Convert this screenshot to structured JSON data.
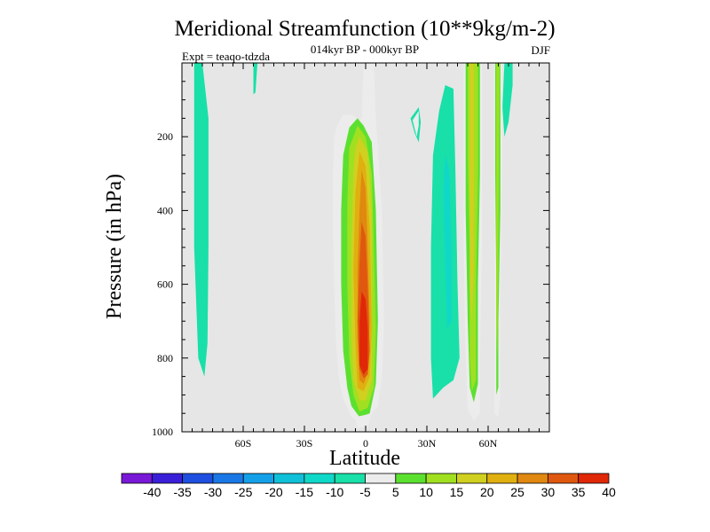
{
  "chart_data": {
    "type": "contour",
    "title": "Meridional Streamfunction (10**9kg/m-2)",
    "subtitle": "014kyr BP - 000kyr BP",
    "left_annotation": "Expt = teaqo-tdzda",
    "right_annotation": "DJF",
    "xlabel": "Latitude",
    "ylabel": "Pressure (in hPa)",
    "xlim": [
      -90,
      90
    ],
    "ylim": [
      0,
      1000
    ],
    "y_inverted": true,
    "x_ticks": [
      {
        "value": -60,
        "label": "60S"
      },
      {
        "value": -30,
        "label": "30S"
      },
      {
        "value": 0,
        "label": "0"
      },
      {
        "value": 30,
        "label": "30N"
      },
      {
        "value": 60,
        "label": "60N"
      }
    ],
    "y_ticks": [
      {
        "value": 200,
        "label": "200"
      },
      {
        "value": 400,
        "label": "400"
      },
      {
        "value": 600,
        "label": "600"
      },
      {
        "value": 800,
        "label": "800"
      },
      {
        "value": 1000,
        "label": "1000"
      }
    ],
    "background_color": "#e6e6e6",
    "colorbar": {
      "labels": [
        "-40",
        "-35",
        "-30",
        "-25",
        "-20",
        "-15",
        "-10",
        "-5",
        "5",
        "10",
        "15",
        "20",
        "25",
        "30",
        "35",
        "40"
      ],
      "colors": [
        "#7a18d8",
        "#3a1fd8",
        "#1f4fe0",
        "#1a78e6",
        "#14a0e8",
        "#10c0d8",
        "#10d8c8",
        "#18e0a8",
        "#ececec",
        "#5ce030",
        "#a0e020",
        "#d0d020",
        "#e0b010",
        "#e08810",
        "#e05810",
        "#e02808"
      ]
    },
    "features": [
      {
        "name": "equatorial-positive-cell",
        "level_max": 40,
        "lat_range": [
          -16,
          9
        ],
        "p_range": [
          0,
          985
        ]
      },
      {
        "name": "nh-midlat-positive-band-1",
        "level_max": 20,
        "lat_range": [
          48,
          57
        ],
        "p_range": [
          0,
          970
        ]
      },
      {
        "name": "nh-midlat-positive-band-2",
        "level_max": 20,
        "lat_range": [
          63,
          68
        ],
        "p_range": [
          0,
          960
        ]
      },
      {
        "name": "sh-negative-band",
        "level_min": -10,
        "lat_range": [
          -84,
          -77
        ],
        "p_range": [
          0,
          850
        ]
      },
      {
        "name": "nh-subtropical-negative-band",
        "level_min": -10,
        "lat_range": [
          31,
          47
        ],
        "p_range": [
          60,
          910
        ]
      }
    ]
  }
}
